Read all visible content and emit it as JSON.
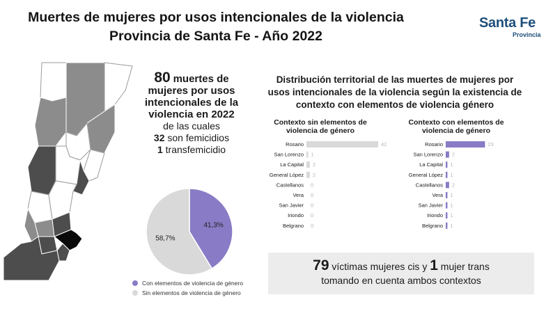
{
  "header": {
    "title_line1": "Muertes de mujeres por usos intencionales de la violencia",
    "title_line2": "Provincia de Santa Fe - Año 2022",
    "logo_main": "Santa Fe",
    "logo_sub": "Provincia"
  },
  "stats": {
    "total": "80",
    "text1": "muertes de",
    "text2": "mujeres por usos",
    "text3": "intencionales de la",
    "text4": "violencia en 2022",
    "text5": "de las cuales",
    "femicidios_n": "32",
    "femicidios_label": "son femicidios",
    "transfem_n": "1",
    "transfem_label": "transfemicidio"
  },
  "distribution": {
    "line1": "Distribución territorial de las muertes de mujeres por",
    "line2": "usos intencionales de la violencia según la existencia de",
    "line3": "contexto con elementos de violencia género"
  },
  "summary": {
    "cis_n": "79",
    "cis_label": "víctimas mujeres cis y",
    "trans_n": "1",
    "trans_label": "mujer trans",
    "line2": "tomando en cuenta ambos contextos"
  },
  "colors": {
    "purple": "#8a7bc6",
    "gray": "#d9d9d9",
    "map_light": "#ffffff",
    "map_mid": "#8c8c8c",
    "map_dark": "#4d4d4d",
    "map_black": "#0a0a0a"
  },
  "chart_data": [
    {
      "type": "pie",
      "labels": [
        "Con elementos de violencia de género",
        "Sin elementos de violencia de género"
      ],
      "values": [
        41.3,
        58.7
      ],
      "data_labels": [
        "41,3%",
        "58,7%"
      ],
      "colors": [
        "#8a7bc6",
        "#d9d9d9"
      ],
      "legend_position": "bottom"
    },
    {
      "type": "bar",
      "orientation": "horizontal",
      "title_line1": "Contexto sin elementos de",
      "title_line2": "violencia de género",
      "categories": [
        "Rosario",
        "San Lorenzo",
        "La Capital",
        "General López",
        "Castellanos",
        "Vera",
        "San Javier",
        "Iriondo",
        "Belgrano"
      ],
      "values": [
        42,
        1,
        2,
        2,
        0,
        0,
        0,
        0,
        0
      ],
      "xlim": [
        0,
        42
      ],
      "color": "#d9d9d9"
    },
    {
      "type": "bar",
      "orientation": "horizontal",
      "title_line1": "Contexto con elementos de",
      "title_line2": "violencia de género",
      "categories": [
        "Rosario",
        "San Lorenzo",
        "La Capital",
        "General López",
        "Castellanos",
        "Vera",
        "San Javier",
        "Iriondo",
        "Belgrano"
      ],
      "values": [
        23,
        2,
        1,
        1,
        2,
        1,
        1,
        1,
        1
      ],
      "xlim": [
        0,
        42
      ],
      "color": "#8a7bc6"
    }
  ]
}
